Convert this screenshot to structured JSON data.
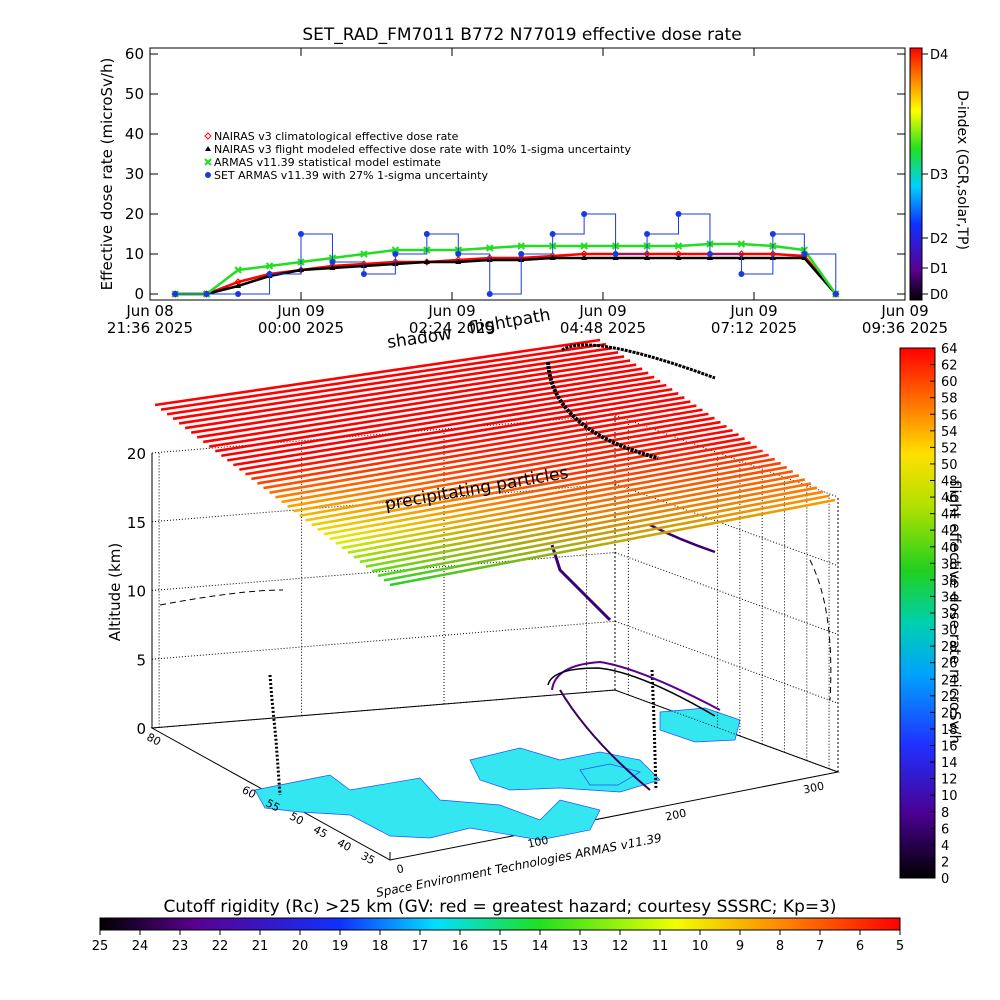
{
  "chart_data": [
    {
      "type": "line",
      "title": "SET_RAD_FM7011  B772 N77019 effective dose rate",
      "ylabel": "Effective dose rate (microSv/h)",
      "x": [
        "2025-06-08 22:00",
        "2025-06-08 22:30",
        "2025-06-08 23:00",
        "2025-06-08 23:30",
        "2025-06-09 00:00",
        "2025-06-09 00:30",
        "2025-06-09 01:00",
        "2025-06-09 01:30",
        "2025-06-09 02:00",
        "2025-06-09 02:30",
        "2025-06-09 03:00",
        "2025-06-09 03:30",
        "2025-06-09 04:00",
        "2025-06-09 04:30",
        "2025-06-09 05:00",
        "2025-06-09 05:30",
        "2025-06-09 06:00",
        "2025-06-09 06:30",
        "2025-06-09 07:00",
        "2025-06-09 07:30",
        "2025-06-09 08:00",
        "2025-06-09 08:30"
      ],
      "xlim": [
        "2025-06-08 21:36",
        "2025-06-09 09:36"
      ],
      "xticks": [
        {
          "value": "2025-06-08 21:36",
          "label": [
            "Jun 08",
            "21:36 2025"
          ]
        },
        {
          "value": "2025-06-09 00:00",
          "label": [
            "Jun 09",
            "00:00 2025"
          ]
        },
        {
          "value": "2025-06-09 02:24",
          "label": [
            "Jun 09",
            "02:24 2025"
          ]
        },
        {
          "value": "2025-06-09 04:48",
          "label": [
            "Jun 09",
            "04:48 2025"
          ]
        },
        {
          "value": "2025-06-09 07:12",
          "label": [
            "Jun 09",
            "07:12 2025"
          ]
        },
        {
          "value": "2025-06-09 09:36",
          "label": [
            "Jun 09",
            "09:36 2025"
          ]
        }
      ],
      "ylim": [
        -1.5,
        61.5
      ],
      "yticks": [
        0,
        10,
        20,
        30,
        40,
        50,
        60
      ],
      "series": [
        {
          "name": "NAIRAS v3 climatological effective dose rate",
          "color": "#ff0000",
          "marker": "diamond",
          "values": [
            0,
            0,
            3,
            5,
            6,
            7,
            7.5,
            8,
            8,
            8.5,
            9,
            9,
            9.5,
            10,
            10,
            10,
            10,
            10,
            10,
            10,
            9.5,
            0
          ]
        },
        {
          "name": "NAIRAS v3 flight modeled effective dose rate with 10% 1-sigma uncertainty",
          "color": "#000000",
          "marker": "triangle",
          "values": [
            0,
            0,
            2,
            4.5,
            6,
            6.5,
            7,
            7.5,
            8,
            8,
            8.5,
            8.5,
            9,
            9,
            9,
            9,
            9,
            9,
            9,
            9,
            9,
            0
          ]
        },
        {
          "name": "ARMAS v11.39 statistical model estimate",
          "color": "#22dd22",
          "marker": "x",
          "values": [
            0,
            0,
            6,
            7,
            8,
            9,
            10,
            11,
            11,
            11,
            11.5,
            12,
            12,
            12,
            12,
            12,
            12,
            12.5,
            12.5,
            12,
            11,
            0
          ]
        },
        {
          "name": "SET ARMAS v11.39 with 27% 1-sigma uncertainty",
          "color": "#1a3adf",
          "marker": "circle",
          "values": [
            0,
            0,
            0,
            5,
            15,
            8,
            5,
            10,
            15,
            10,
            0,
            10,
            15,
            20,
            10,
            15,
            20,
            10,
            5,
            15,
            10,
            0
          ]
        }
      ],
      "colorbar": {
        "label": "D-index (GCR,solar,TP)",
        "ticks": [
          {
            "value": 0,
            "label": "D0"
          },
          {
            "value": 6.5,
            "label": "D1"
          },
          {
            "value": 14,
            "label": "D2"
          },
          {
            "value": 30,
            "label": "D3"
          },
          {
            "value": 60,
            "label": "D4"
          }
        ]
      }
    },
    {
      "type": "surface3d",
      "zlabel": "Altitude (km)",
      "zlim": [
        0,
        20
      ],
      "zticks": [
        0,
        5,
        10,
        15,
        20
      ],
      "latlim": [
        83,
        33
      ],
      "latticks": [
        80,
        60,
        55,
        50,
        45,
        40,
        35
      ],
      "lonlim": [
        -5,
        320
      ],
      "lonticks": [
        0,
        100,
        200,
        300
      ],
      "annotations": [
        "shadow",
        "flightpath",
        "precipitating particles"
      ],
      "credit": "Space Environment Technologies ARMAS v11.39",
      "colorbar": {
        "label": "flight effective dose rate microSv/h",
        "lim": [
          0,
          64
        ],
        "ticks": [
          0,
          2,
          4,
          6,
          8,
          10,
          12,
          14,
          16,
          18,
          20,
          22,
          24,
          26,
          28,
          30,
          32,
          34,
          36,
          38,
          40,
          42,
          44,
          46,
          48,
          50,
          52,
          54,
          56,
          58,
          60,
          62,
          64
        ]
      },
      "colorbar2": {
        "label": "Cutoff rigidity (Rc) >25 km (GV: red = greatest hazard; courtesy SSSRC; Kp=3)",
        "lim": [
          25,
          5
        ],
        "ticks": [
          25,
          24,
          23,
          22,
          21,
          20,
          19,
          18,
          17,
          16,
          15,
          14,
          13,
          12,
          11,
          10,
          9,
          8,
          7,
          6,
          5
        ]
      }
    }
  ]
}
